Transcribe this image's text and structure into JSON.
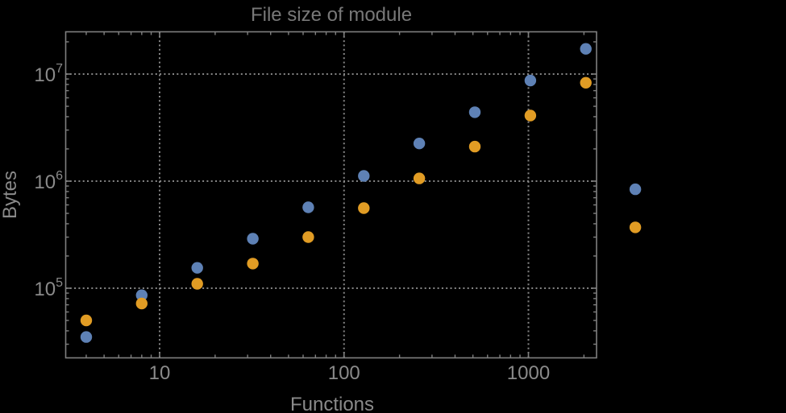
{
  "title": "File size of module",
  "colors": {
    "background": "#000000",
    "series_blue": "#5e81b5",
    "series_orange": "#e19c24",
    "frame": "#7f7f7f",
    "grid": "#858585",
    "tick_text": "#8a8a8a",
    "title_text": "#787878"
  },
  "chart_data": {
    "type": "scatter",
    "title": "File size of module",
    "xlabel": "Functions",
    "ylabel": "Bytes",
    "x_scale": "log",
    "y_scale": "log",
    "grid": "dotted",
    "legend": "none",
    "x_range": [
      3.1,
      2340
    ],
    "y_range": [
      22500,
      24600000
    ],
    "x_ticks": [
      {
        "value": 10,
        "label": "10"
      },
      {
        "value": 100,
        "label": "100"
      },
      {
        "value": 1000,
        "label": "1000"
      }
    ],
    "y_ticks": [
      {
        "value": 100000,
        "base": "10",
        "exp": "5"
      },
      {
        "value": 1000000,
        "base": "10",
        "exp": "6"
      },
      {
        "value": 10000000,
        "base": "10",
        "exp": "7"
      }
    ],
    "series": [
      {
        "name": "blue",
        "color": "#5e81b5",
        "points": [
          [
            4,
            35000
          ],
          [
            8,
            86000
          ],
          [
            16,
            155000
          ],
          [
            32,
            290000
          ],
          [
            64,
            570000
          ],
          [
            128,
            1120000
          ],
          [
            256,
            2250000
          ],
          [
            512,
            4400000
          ],
          [
            1024,
            8700000
          ],
          [
            2048,
            17200000
          ],
          [
            3800,
            840000
          ]
        ]
      },
      {
        "name": "orange",
        "color": "#e19c24",
        "points": [
          [
            4,
            50000
          ],
          [
            8,
            72000
          ],
          [
            16,
            110000
          ],
          [
            32,
            170000
          ],
          [
            64,
            300000
          ],
          [
            128,
            560000
          ],
          [
            256,
            1060000
          ],
          [
            512,
            2100000
          ],
          [
            1024,
            4100000
          ],
          [
            2048,
            8300000
          ],
          [
            3800,
            370000
          ]
        ]
      }
    ]
  }
}
